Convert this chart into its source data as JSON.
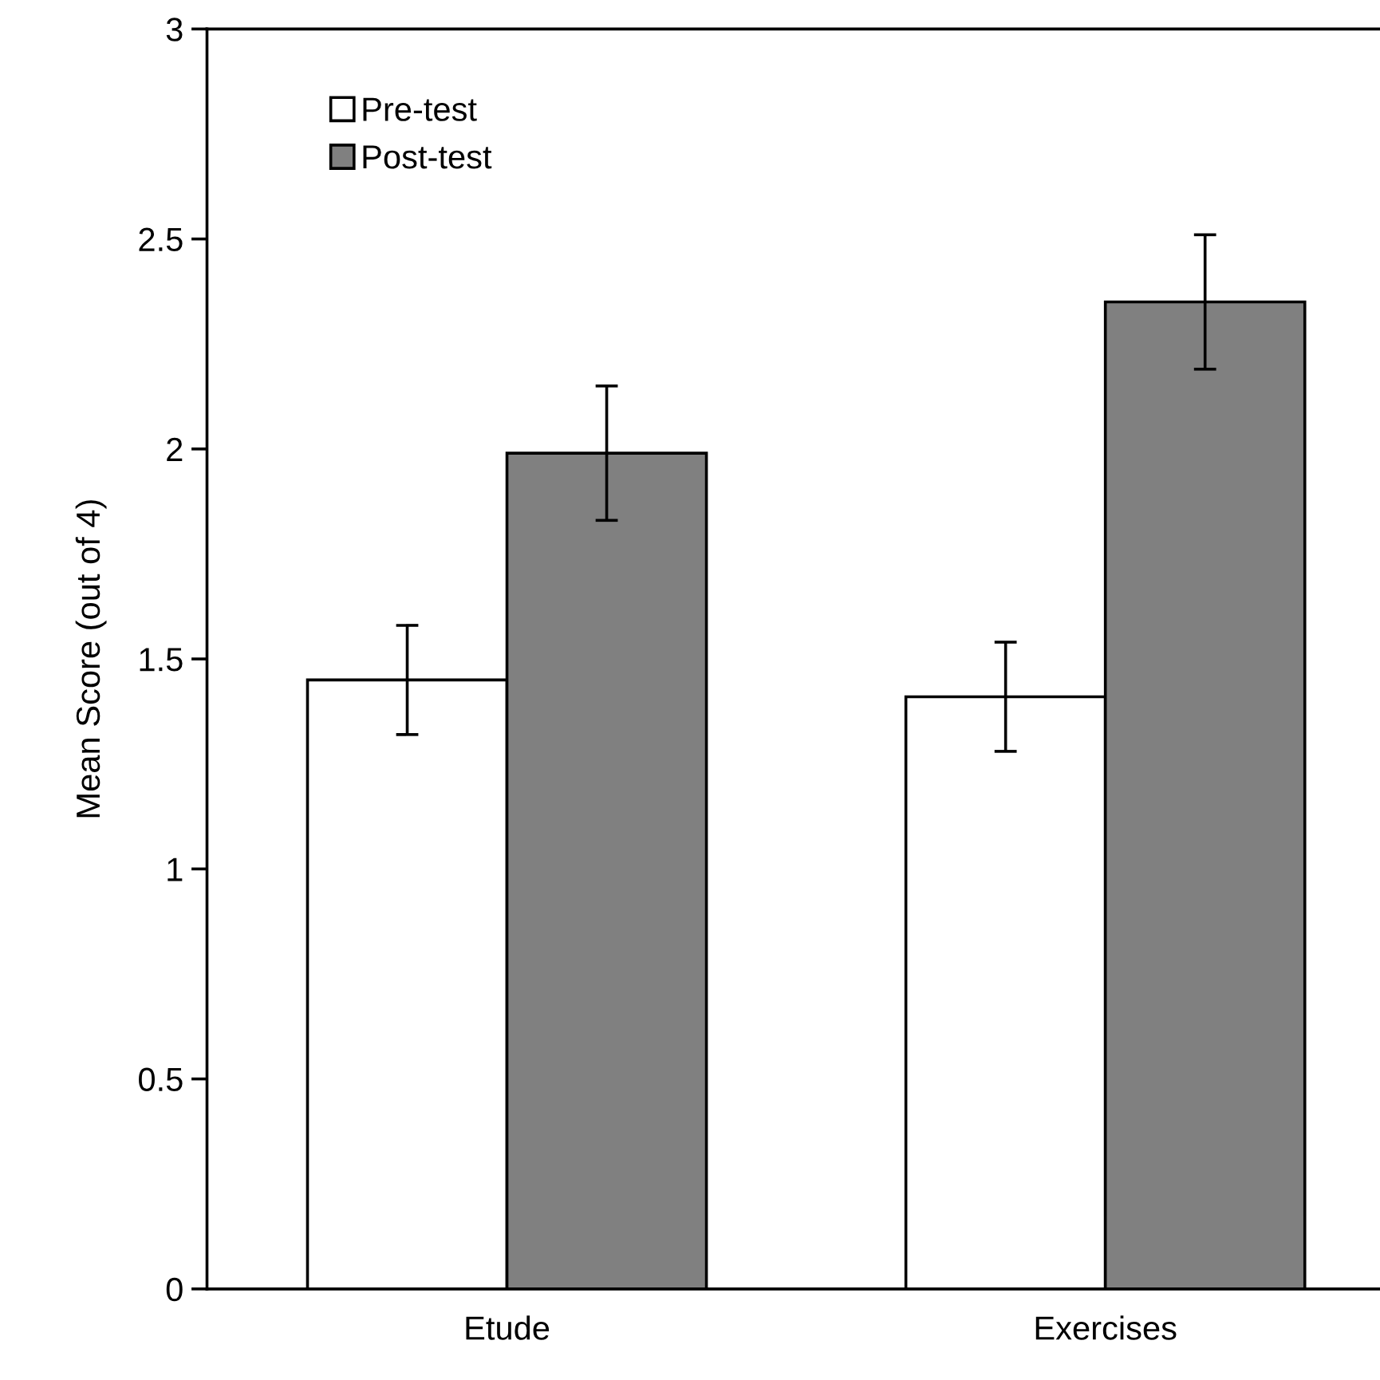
{
  "chart_data": {
    "type": "bar",
    "ylabel": "Mean Score (out of 4)",
    "categories": [
      "Etude",
      "Exercises"
    ],
    "series": [
      {
        "name": "Pre-test",
        "color": "#ffffff",
        "values": [
          1.45,
          1.41
        ],
        "errors": [
          [
            1.32,
            1.58
          ],
          [
            1.28,
            1.54
          ]
        ]
      },
      {
        "name": "Post-test",
        "color": "#808080",
        "values": [
          1.99,
          2.35
        ],
        "errors": [
          [
            1.83,
            2.15
          ],
          [
            2.19,
            2.51
          ]
        ]
      }
    ],
    "ylim": [
      0,
      3
    ],
    "yticks": [
      0,
      0.5,
      1,
      1.5,
      2,
      2.5,
      3
    ],
    "grid": false,
    "legend": "top left"
  }
}
